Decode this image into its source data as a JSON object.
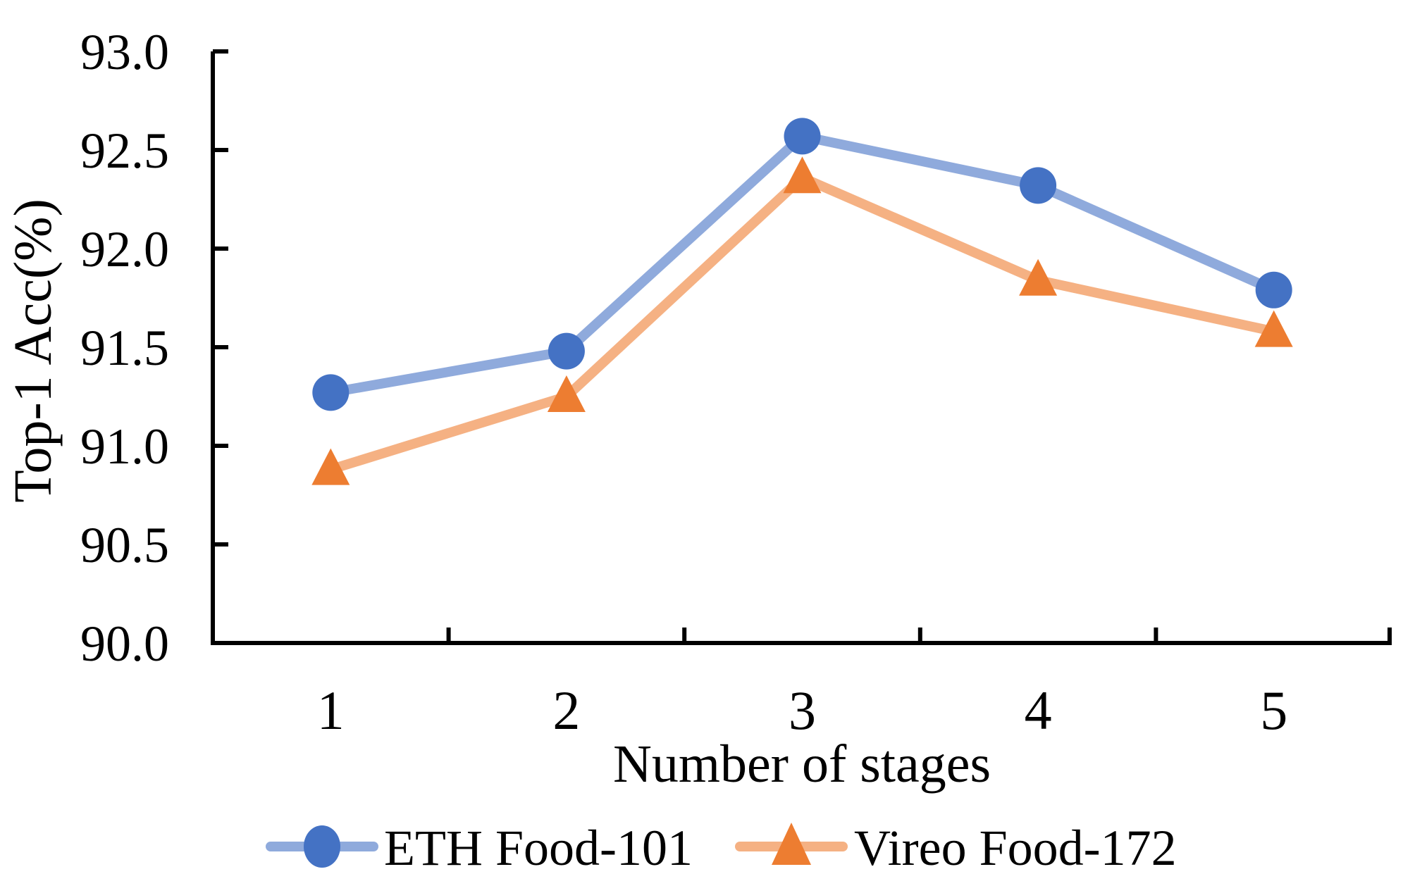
{
  "chart_data": {
    "type": "line",
    "title": "",
    "xlabel": "Number of stages",
    "ylabel": "Top-1 Acc(%)",
    "x": [
      1,
      2,
      3,
      4,
      5
    ],
    "xtick_labels": [
      "1",
      "2",
      "3",
      "4",
      "5"
    ],
    "ylim": [
      90.0,
      93.0
    ],
    "ytick_step": 0.5,
    "ytick_labels": [
      "90.0",
      "90.5",
      "91.0",
      "91.5",
      "92.0",
      "92.5",
      "93.0"
    ],
    "grid": false,
    "legend_position": "bottom",
    "axis_color": "#000000",
    "background_color": "#ffffff",
    "series": [
      {
        "name": "ETH Food-101",
        "marker": "circle",
        "marker_color": "#4472C4",
        "line_color": "#8FAADC",
        "values": [
          91.27,
          91.48,
          92.57,
          92.32,
          91.79
        ]
      },
      {
        "name": "Vireo Food-172",
        "marker": "triangle",
        "marker_color": "#ED7D31",
        "line_color": "#F5B183",
        "values": [
          90.88,
          91.25,
          92.36,
          91.84,
          91.58
        ]
      }
    ]
  }
}
